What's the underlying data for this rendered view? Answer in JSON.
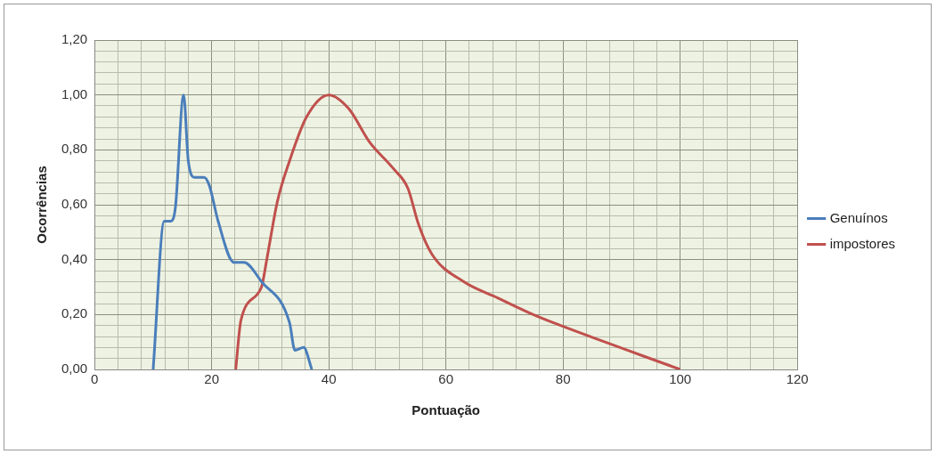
{
  "chart_data": {
    "type": "line",
    "xlabel": "Pontuação",
    "ylabel": "Ocorrências",
    "series": [
      {
        "name": "Genuínos",
        "color": "#4a7ebb",
        "x": [
          10.0,
          11.9,
          13.0,
          13.8,
          15.2,
          16.0,
          17.1,
          18.7,
          19.6,
          21.1,
          23.8,
          25.5,
          28.5,
          33.3,
          34.2,
          35.7,
          37.1
        ],
        "values": [
          0,
          0.54,
          0.54,
          0.59,
          1.0,
          0.76,
          0.7,
          0.7,
          0.67,
          0.54,
          0.39,
          0.39,
          0.32,
          0.17,
          0.07,
          0.08,
          0
        ]
      },
      {
        "name": "impostores",
        "color": "#c0504d",
        "x": [
          24.1,
          25.0,
          28.5,
          29.4,
          31.2,
          33.3,
          36.2,
          40.0,
          43.4,
          46.9,
          51.1,
          53.5,
          55.3,
          57.6,
          63.0,
          68.9,
          74.9,
          79.6,
          100
        ],
        "values": [
          0,
          0.18,
          0.3,
          0.4,
          0.61,
          0.76,
          0.92,
          1.0,
          0.95,
          0.83,
          0.73,
          0.66,
          0.53,
          0.42,
          0.32,
          0.26,
          0.2,
          0.16,
          0
        ]
      }
    ],
    "xlim": [
      0,
      120
    ],
    "xticks": [
      0,
      {
        "value": 4,
        "label": null
      },
      {
        "value": 8,
        "label": null
      },
      {
        "value": 12,
        "label": null
      },
      {
        "value": 16,
        "label": null
      },
      20,
      {
        "value": 24,
        "label": null
      },
      {
        "value": 28,
        "label": null
      },
      {
        "value": 32,
        "label": null
      },
      {
        "value": 36,
        "label": null
      },
      40,
      {
        "value": 44,
        "label": null
      },
      {
        "value": 48,
        "label": null
      },
      {
        "value": 52,
        "label": null
      },
      {
        "value": 56,
        "label": null
      },
      60,
      {
        "value": 64,
        "label": null
      },
      {
        "value": 68,
        "label": null
      },
      {
        "value": 72,
        "label": null
      },
      {
        "value": 76,
        "label": null
      },
      80,
      {
        "value": 84,
        "label": null
      },
      {
        "value": 88,
        "label": null
      },
      {
        "value": 92,
        "label": null
      },
      {
        "value": 96,
        "label": null
      },
      100,
      {
        "value": 104,
        "label": null
      },
      {
        "value": 108,
        "label": null
      },
      {
        "value": 112,
        "label": null
      },
      {
        "value": 116,
        "label": null
      },
      120
    ],
    "ylim": [
      0,
      1.2
    ],
    "yticks": [
      {
        "value": 0,
        "label": "0,00"
      },
      {
        "value": 0.04,
        "label": null
      },
      {
        "value": 0.08,
        "label": null
      },
      {
        "value": 0.12,
        "label": null
      },
      {
        "value": 0.16,
        "label": null
      },
      {
        "value": 0.2,
        "label": "0,20"
      },
      {
        "value": 0.24,
        "label": null
      },
      {
        "value": 0.28,
        "label": null
      },
      {
        "value": 0.32,
        "label": null
      },
      {
        "value": 0.36,
        "label": null
      },
      {
        "value": 0.4,
        "label": "0,40"
      },
      {
        "value": 0.44,
        "label": null
      },
      {
        "value": 0.48,
        "label": null
      },
      {
        "value": 0.52,
        "label": null
      },
      {
        "value": 0.56,
        "label": null
      },
      {
        "value": 0.6,
        "label": "0,60"
      },
      {
        "value": 0.64,
        "label": null
      },
      {
        "value": 0.68,
        "label": null
      },
      {
        "value": 0.72,
        "label": null
      },
      {
        "value": 0.76,
        "label": null
      },
      {
        "value": 0.8,
        "label": "0,80"
      },
      {
        "value": 0.84,
        "label": null
      },
      {
        "value": 0.88,
        "label": null
      },
      {
        "value": 0.92,
        "label": null
      },
      {
        "value": 0.96,
        "label": null
      },
      {
        "value": 1.0,
        "label": "1,00"
      },
      {
        "value": 1.04,
        "label": null
      },
      {
        "value": 1.08,
        "label": null
      },
      {
        "value": 1.12,
        "label": null
      },
      {
        "value": 1.16,
        "label": null
      },
      {
        "value": 1.2,
        "label": "1,20"
      }
    ],
    "grid": true,
    "legend": "right"
  }
}
